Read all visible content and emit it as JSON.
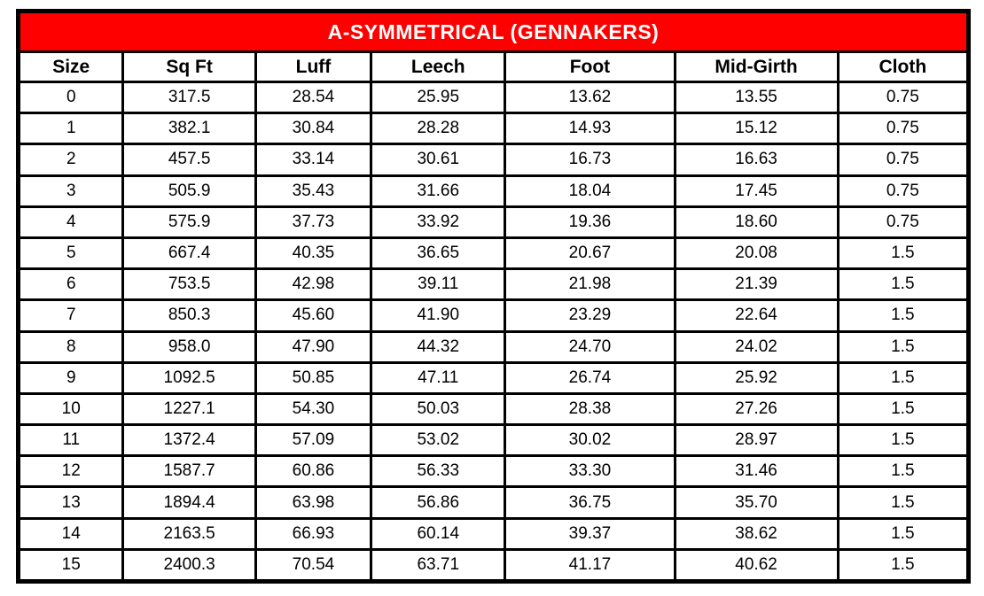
{
  "chart_data": {
    "type": "table",
    "title": "A-SYMMETRICAL (GENNAKERS)",
    "columns": [
      "Size",
      "Sq Ft",
      "Luff",
      "Leech",
      "Foot",
      "Mid-Girth",
      "Cloth"
    ],
    "rows": [
      [
        "0",
        "317.5",
        "28.54",
        "25.95",
        "13.62",
        "13.55",
        "0.75"
      ],
      [
        "1",
        "382.1",
        "30.84",
        "28.28",
        "14.93",
        "15.12",
        "0.75"
      ],
      [
        "2",
        "457.5",
        "33.14",
        "30.61",
        "16.73",
        "16.63",
        "0.75"
      ],
      [
        "3",
        "505.9",
        "35.43",
        "31.66",
        "18.04",
        "17.45",
        "0.75"
      ],
      [
        "4",
        "575.9",
        "37.73",
        "33.92",
        "19.36",
        "18.60",
        "0.75"
      ],
      [
        "5",
        "667.4",
        "40.35",
        "36.65",
        "20.67",
        "20.08",
        "1.5"
      ],
      [
        "6",
        "753.5",
        "42.98",
        "39.11",
        "21.98",
        "21.39",
        "1.5"
      ],
      [
        "7",
        "850.3",
        "45.60",
        "41.90",
        "23.29",
        "22.64",
        "1.5"
      ],
      [
        "8",
        "958.0",
        "47.90",
        "44.32",
        "24.70",
        "24.02",
        "1.5"
      ],
      [
        "9",
        "1092.5",
        "50.85",
        "47.11",
        "26.74",
        "25.92",
        "1.5"
      ],
      [
        "10",
        "1227.1",
        "54.30",
        "50.03",
        "28.38",
        "27.26",
        "1.5"
      ],
      [
        "11",
        "1372.4",
        "57.09",
        "53.02",
        "30.02",
        "28.97",
        "1.5"
      ],
      [
        "12",
        "1587.7",
        "60.86",
        "56.33",
        "33.30",
        "31.46",
        "1.5"
      ],
      [
        "13",
        "1894.4",
        "63.98",
        "56.86",
        "36.75",
        "35.70",
        "1.5"
      ],
      [
        "14",
        "2163.5",
        "66.93",
        "60.14",
        "39.37",
        "38.62",
        "1.5"
      ],
      [
        "15",
        "2400.3",
        "70.54",
        "63.71",
        "41.17",
        "40.62",
        "1.5"
      ]
    ]
  },
  "colors": {
    "title_bg": "#FF0000",
    "title_text": "#FFFFFF",
    "border": "#000000",
    "cell_bg": "#FFFFFF",
    "cell_text": "#000000"
  }
}
